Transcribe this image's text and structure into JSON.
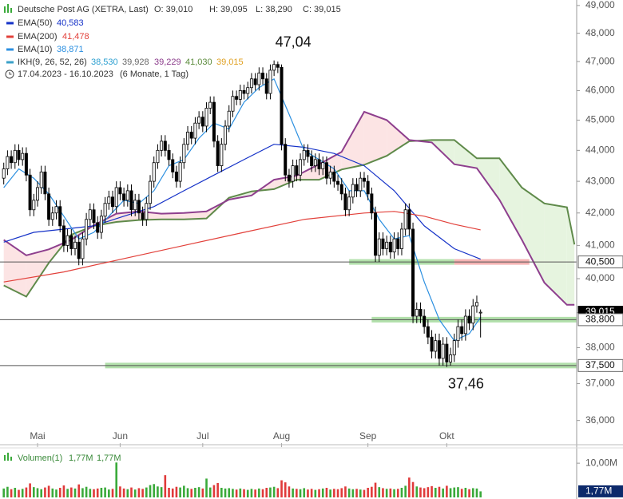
{
  "header": {
    "title": "Deutsche Post AG (XETRA, Last)",
    "ohlc": [
      "O: 39,010",
      "H: 39,095",
      "L: 38,290",
      "C: 39,015"
    ],
    "range": "17.04.2023 - 16.10.2023",
    "period": "(6 Monate, 1 Tag)"
  },
  "chart_data": {
    "type": "candlestick",
    "log_scale": true,
    "ylim": [
      35.4,
      49.2
    ],
    "xlim": [
      -1,
      152.6
    ],
    "yticks": [
      {
        "value": 49,
        "label": "49,000"
      },
      {
        "value": 48,
        "label": "48,000"
      },
      {
        "value": 47,
        "label": "47,000"
      },
      {
        "value": 46,
        "label": "46,000"
      },
      {
        "value": 45,
        "label": "45,000"
      },
      {
        "value": 44,
        "label": "44,000"
      },
      {
        "value": 43,
        "label": "43,000"
      },
      {
        "value": 42,
        "label": "42,000"
      },
      {
        "value": 41,
        "label": "41,000"
      },
      {
        "value": 40,
        "label": "40,000"
      },
      {
        "value": 39,
        "label": "39,000"
      },
      {
        "value": 38,
        "label": "38,000"
      },
      {
        "value": 37,
        "label": "37,000"
      },
      {
        "value": 36,
        "label": "36,000"
      }
    ],
    "up_color": "#ffffff",
    "down_color": "#000000",
    "candles": [
      [
        43.1,
        43.6,
        42.9,
        43.4
      ],
      [
        43.4,
        44.0,
        43.2,
        43.8
      ],
      [
        43.8,
        44.0,
        43.4,
        43.6
      ],
      [
        43.6,
        44.2,
        43.4,
        44.0
      ],
      [
        44.0,
        44.2,
        43.5,
        43.7
      ],
      [
        43.7,
        44.1,
        43.5,
        43.9
      ],
      [
        43.9,
        44.1,
        43.0,
        43.2
      ],
      [
        43.2,
        43.4,
        41.9,
        42.1
      ],
      [
        42.1,
        42.6,
        41.9,
        42.4
      ],
      [
        42.4,
        43.0,
        42.2,
        42.8
      ],
      [
        42.8,
        43.5,
        42.6,
        43.3
      ],
      [
        43.3,
        43.5,
        42.4,
        42.6
      ],
      [
        42.6,
        42.8,
        41.6,
        41.8
      ],
      [
        41.8,
        42.2,
        41.6,
        42.0
      ],
      [
        42.0,
        42.4,
        41.8,
        42.2
      ],
      [
        42.2,
        42.4,
        41.4,
        41.6
      ],
      [
        41.6,
        41.8,
        40.8,
        41.0
      ],
      [
        41.0,
        41.5,
        40.8,
        41.3
      ],
      [
        41.3,
        41.5,
        40.7,
        40.9
      ],
      [
        40.9,
        41.3,
        40.7,
        41.1
      ],
      [
        41.1,
        41.3,
        40.4,
        40.6
      ],
      [
        40.6,
        41.4,
        40.4,
        41.2
      ],
      [
        41.2,
        42.0,
        41.0,
        41.8
      ],
      [
        41.8,
        42.3,
        41.6,
        42.1
      ],
      [
        42.1,
        42.3,
        41.5,
        41.7
      ],
      [
        41.7,
        41.9,
        41.2,
        41.4
      ],
      [
        41.4,
        42.1,
        41.2,
        41.9
      ],
      [
        41.9,
        42.5,
        41.7,
        42.3
      ],
      [
        42.3,
        42.7,
        42.1,
        42.5
      ],
      [
        42.5,
        42.7,
        42.0,
        42.2
      ],
      [
        42.2,
        43.0,
        42.0,
        42.8
      ],
      [
        42.8,
        43.0,
        42.4,
        42.6
      ],
      [
        42.6,
        42.8,
        42.2,
        42.4
      ],
      [
        42.4,
        42.9,
        42.2,
        42.7
      ],
      [
        42.7,
        42.9,
        41.9,
        42.1
      ],
      [
        42.1,
        42.6,
        41.9,
        42.4
      ],
      [
        42.4,
        42.6,
        41.8,
        42.0
      ],
      [
        42.0,
        42.2,
        41.6,
        41.8
      ],
      [
        41.8,
        42.5,
        41.6,
        42.3
      ],
      [
        42.3,
        43.2,
        42.1,
        43.0
      ],
      [
        43.0,
        43.8,
        42.8,
        43.6
      ],
      [
        43.6,
        44.2,
        43.4,
        44.0
      ],
      [
        44.0,
        44.5,
        43.8,
        44.3
      ],
      [
        44.3,
        44.5,
        43.8,
        44.0
      ],
      [
        44.0,
        44.2,
        43.5,
        43.7
      ],
      [
        43.7,
        43.9,
        43.1,
        43.3
      ],
      [
        43.3,
        43.5,
        42.8,
        43.0
      ],
      [
        43.0,
        43.8,
        42.8,
        43.6
      ],
      [
        43.6,
        44.4,
        43.4,
        44.2
      ],
      [
        44.2,
        44.8,
        44.0,
        44.6
      ],
      [
        44.6,
        44.8,
        44.2,
        44.4
      ],
      [
        44.4,
        45.1,
        44.2,
        44.9
      ],
      [
        44.9,
        45.3,
        44.7,
        45.1
      ],
      [
        45.1,
        45.3,
        44.6,
        44.8
      ],
      [
        44.8,
        45.6,
        44.6,
        45.4
      ],
      [
        45.4,
        45.8,
        45.2,
        45.6
      ],
      [
        45.6,
        45.8,
        44.1,
        44.3
      ],
      [
        44.3,
        44.5,
        43.3,
        43.5
      ],
      [
        43.5,
        44.4,
        43.3,
        44.2
      ],
      [
        44.2,
        45.0,
        44.0,
        44.8
      ],
      [
        44.8,
        45.5,
        44.6,
        45.3
      ],
      [
        45.3,
        46.0,
        45.1,
        45.8
      ],
      [
        45.8,
        46.0,
        45.5,
        45.7
      ],
      [
        45.7,
        46.2,
        45.5,
        46.0
      ],
      [
        46.0,
        46.2,
        45.7,
        45.9
      ],
      [
        45.9,
        46.3,
        45.7,
        46.1
      ],
      [
        46.1,
        46.6,
        45.9,
        46.4
      ],
      [
        46.4,
        46.6,
        46.0,
        46.2
      ],
      [
        46.2,
        46.8,
        46.0,
        46.6
      ],
      [
        46.6,
        46.8,
        46.2,
        46.4
      ],
      [
        46.4,
        46.6,
        45.7,
        45.9
      ],
      [
        45.9,
        46.9,
        45.7,
        46.7
      ],
      [
        46.7,
        47.04,
        46.5,
        46.9
      ],
      [
        46.9,
        47.0,
        46.6,
        46.8
      ],
      [
        46.8,
        46.9,
        44.0,
        44.2
      ],
      [
        44.2,
        44.4,
        43.0,
        43.2
      ],
      [
        43.2,
        43.4,
        42.8,
        43.0
      ],
      [
        43.0,
        43.7,
        42.8,
        43.5
      ],
      [
        43.5,
        43.7,
        43.0,
        43.2
      ],
      [
        43.2,
        43.9,
        43.0,
        43.7
      ],
      [
        43.7,
        44.2,
        43.5,
        44.0
      ],
      [
        44.0,
        44.2,
        43.6,
        43.8
      ],
      [
        43.8,
        44.0,
        43.3,
        43.5
      ],
      [
        43.5,
        43.9,
        43.3,
        43.7
      ],
      [
        43.7,
        43.9,
        43.2,
        43.4
      ],
      [
        43.4,
        43.8,
        43.2,
        43.6
      ],
      [
        43.6,
        43.8,
        42.9,
        43.1
      ],
      [
        43.1,
        43.5,
        42.9,
        43.3
      ],
      [
        43.3,
        43.5,
        42.8,
        43.0
      ],
      [
        43.0,
        43.2,
        42.7,
        42.9
      ],
      [
        42.9,
        43.1,
        42.4,
        42.6
      ],
      [
        42.6,
        42.8,
        41.9,
        42.1
      ],
      [
        42.1,
        42.7,
        41.9,
        42.5
      ],
      [
        42.5,
        43.1,
        42.3,
        42.9
      ],
      [
        42.9,
        43.1,
        42.5,
        42.7
      ],
      [
        42.7,
        43.3,
        42.5,
        43.1
      ],
      [
        43.1,
        43.3,
        42.8,
        43.0
      ],
      [
        43.0,
        43.2,
        42.4,
        42.6
      ],
      [
        42.6,
        42.8,
        41.8,
        42.0
      ],
      [
        42.0,
        42.2,
        40.5,
        40.7
      ],
      [
        40.7,
        41.4,
        40.5,
        41.2
      ],
      [
        41.2,
        41.4,
        40.7,
        40.9
      ],
      [
        40.9,
        41.3,
        40.7,
        41.1
      ],
      [
        41.1,
        41.3,
        40.6,
        40.8
      ],
      [
        40.8,
        41.4,
        40.6,
        41.2
      ],
      [
        41.2,
        41.4,
        40.7,
        40.9
      ],
      [
        40.9,
        41.7,
        40.7,
        41.5
      ],
      [
        41.5,
        42.3,
        41.3,
        42.1
      ],
      [
        42.1,
        42.3,
        41.3,
        41.5
      ],
      [
        41.5,
        41.7,
        38.7,
        38.9
      ],
      [
        38.9,
        39.3,
        38.7,
        39.1
      ],
      [
        39.1,
        39.3,
        38.7,
        38.9
      ],
      [
        38.9,
        39.1,
        38.4,
        38.6
      ],
      [
        38.6,
        38.8,
        38.1,
        38.3
      ],
      [
        38.3,
        38.5,
        37.7,
        37.9
      ],
      [
        37.9,
        38.4,
        37.7,
        38.2
      ],
      [
        38.2,
        38.4,
        37.5,
        37.7
      ],
      [
        37.7,
        38.3,
        37.5,
        38.1
      ],
      [
        38.1,
        38.3,
        37.46,
        37.6
      ],
      [
        37.6,
        38.0,
        37.5,
        37.8
      ],
      [
        37.8,
        38.4,
        37.6,
        38.2
      ],
      [
        38.2,
        38.8,
        38.0,
        38.6
      ],
      [
        38.6,
        38.8,
        38.2,
        38.4
      ],
      [
        38.4,
        39.1,
        38.2,
        38.9
      ],
      [
        38.9,
        39.1,
        38.5,
        38.7
      ],
      [
        38.7,
        39.4,
        38.5,
        39.2
      ],
      [
        39.2,
        39.5,
        39.0,
        39.3
      ],
      [
        39.01,
        39.095,
        38.29,
        39.015
      ]
    ],
    "lines": [
      {
        "name": "EMA(50)",
        "last_label": "40,583",
        "color": "#1532c8",
        "x": [
          0,
          8,
          16,
          24,
          32,
          40,
          48,
          56,
          64,
          72,
          80,
          88,
          96,
          104,
          112,
          120,
          127
        ],
        "values": [
          41.1,
          41.4,
          41.5,
          41.6,
          41.9,
          42.2,
          42.7,
          43.2,
          43.7,
          44.2,
          44.1,
          43.9,
          43.5,
          42.7,
          41.6,
          40.9,
          40.583
        ]
      },
      {
        "name": "EMA(200)",
        "last_label": "41,478",
        "color": "#e2403a",
        "x": [
          0,
          16,
          32,
          48,
          64,
          80,
          96,
          104,
          112,
          120,
          127
        ],
        "values": [
          39.9,
          40.2,
          40.6,
          41.0,
          41.4,
          41.8,
          42.0,
          42.05,
          41.9,
          41.65,
          41.478
        ]
      },
      {
        "name": "EMA(10)",
        "last_label": "38,871",
        "color": "#2b8fe0",
        "x": [
          0,
          4,
          8,
          12,
          16,
          20,
          24,
          28,
          32,
          36,
          40,
          44,
          48,
          52,
          56,
          60,
          64,
          68,
          72,
          76,
          80,
          84,
          88,
          92,
          96,
          100,
          104,
          108,
          112,
          116,
          120,
          124,
          127
        ],
        "values": [
          42.8,
          43.4,
          43.1,
          42.6,
          41.9,
          41.2,
          41.4,
          41.9,
          42.4,
          42.3,
          42.7,
          43.5,
          43.7,
          44.4,
          44.9,
          44.7,
          45.6,
          46.1,
          46.4,
          45.2,
          44.0,
          43.7,
          43.4,
          42.7,
          42.7,
          41.8,
          41.2,
          41.3,
          39.9,
          38.8,
          38.2,
          38.4,
          38.871
        ]
      }
    ],
    "cloud": {
      "name": "IKH(9, 26, 52, 26)",
      "legend_values": [
        {
          "label": "38,530",
          "color": "#2b9fd0"
        },
        {
          "label": "39,928",
          "color": "#666666"
        },
        {
          "label": "39,229",
          "color": "#8a3a8a"
        },
        {
          "label": "41,030",
          "color": "#5a8a3a"
        },
        {
          "label": "39,015",
          "color": "#e0a020"
        }
      ],
      "color_a": "#5f8a4a",
      "color_b": "#8e3f8e",
      "fill_up": "#e6f4df",
      "fill_down": "#fce4e4",
      "x": [
        0,
        6,
        12,
        18,
        24,
        30,
        36,
        42,
        48,
        54,
        60,
        66,
        72,
        78,
        84,
        90,
        96,
        102,
        108,
        114,
        120,
        126,
        132,
        138,
        144,
        150,
        152
      ],
      "span_a": [
        39.8,
        39.47,
        40.47,
        41.33,
        41.6,
        41.72,
        41.78,
        41.8,
        41.8,
        41.83,
        42.48,
        42.68,
        42.75,
        43.05,
        43.05,
        43.38,
        43.53,
        43.82,
        44.3,
        44.34,
        44.34,
        43.74,
        43.74,
        42.8,
        42.3,
        42.18,
        41.03
      ],
      "span_b": [
        41.17,
        40.7,
        40.88,
        41.17,
        41.62,
        41.98,
        42.05,
        41.98,
        42.0,
        42.05,
        42.42,
        42.55,
        43.05,
        43.18,
        43.55,
        43.95,
        45.28,
        45.0,
        44.34,
        44.26,
        43.55,
        43.42,
        42.42,
        41.17,
        39.88,
        39.23,
        39.229
      ]
    },
    "levels": [
      {
        "value": 40.5,
        "label": "40,500",
        "zones": [
          {
            "from": 92,
            "to": 120,
            "color": "#9fd896"
          },
          {
            "from": 120,
            "to": 140,
            "color": "#f2a0a0"
          }
        ]
      },
      {
        "value": 38.8,
        "label": "38,800",
        "zones": [
          {
            "from": 98,
            "to": 152.6,
            "color": "#9fd896"
          }
        ]
      },
      {
        "value": 37.5,
        "label": "37,500",
        "zones": [
          {
            "from": 27,
            "to": 152.6,
            "color": "#9fd896"
          }
        ]
      }
    ],
    "current": {
      "value": 39.015,
      "label": "39,015"
    },
    "annotations": [
      {
        "value": 47.04,
        "label": "47,04",
        "index": 72,
        "side": "above"
      },
      {
        "value": 37.46,
        "label": "37,46",
        "index": 118,
        "side": "below"
      }
    ],
    "months": {
      "labels": [
        "Mai",
        "Jun",
        "Jul",
        "Aug",
        "Sep",
        "Okt"
      ],
      "index": [
        9,
        31,
        53,
        74,
        97,
        118
      ]
    },
    "volume": {
      "title": "Volumen(1)",
      "labels": [
        "1,77M",
        "1,77M"
      ],
      "up_color": "#3aaa3a",
      "down_color": "#e03a3a",
      "ylim": [
        0,
        14
      ],
      "yticks": [
        {
          "value": 10,
          "label": "10,00M"
        }
      ],
      "last_tag": {
        "value": 1.77,
        "label": "1,77M"
      },
      "values": [
        2.6,
        3.1,
        2.4,
        2.8,
        2.2,
        2.5,
        2.9,
        4.1,
        3.0,
        2.7,
        2.4,
        2.9,
        3.4,
        2.6,
        2.3,
        2.8,
        3.5,
        2.5,
        2.9,
        2.6,
        3.8,
        2.7,
        3.1,
        2.5,
        2.4,
        2.6,
        2.8,
        2.9,
        2.3,
        2.5,
        10.2,
        3.2,
        2.6,
        2.4,
        2.9,
        2.3,
        2.7,
        2.5,
        2.9,
        3.6,
        3.9,
        3.2,
        3.0,
        6.5,
        2.8,
        2.6,
        3.1,
        2.9,
        3.4,
        2.7,
        2.5,
        2.8,
        3.0,
        2.6,
        5.5,
        2.9,
        3.6,
        4.2,
        2.8,
        2.6,
        2.7,
        2.5,
        2.3,
        2.6,
        2.4,
        2.2,
        2.5,
        2.3,
        2.6,
        2.4,
        2.8,
        2.9,
        3.1,
        2.7,
        5.0,
        4.4,
        3.2,
        2.6,
        2.5,
        2.4,
        2.7,
        2.3,
        2.5,
        2.2,
        2.4,
        2.6,
        2.8,
        2.3,
        2.5,
        2.4,
        2.7,
        3.2,
        2.6,
        2.4,
        2.5,
        2.3,
        2.2,
        2.8,
        3.1,
        4.3,
        3.0,
        2.7,
        2.5,
        2.6,
        2.4,
        2.5,
        2.8,
        3.4,
        5.8,
        4.5,
        3.2,
        2.9,
        2.7,
        3.0,
        3.3,
        2.8,
        3.1,
        2.6,
        3.4,
        2.7,
        2.9,
        3.0,
        2.5,
        2.8,
        2.4,
        2.7,
        2.6,
        1.77
      ]
    }
  }
}
